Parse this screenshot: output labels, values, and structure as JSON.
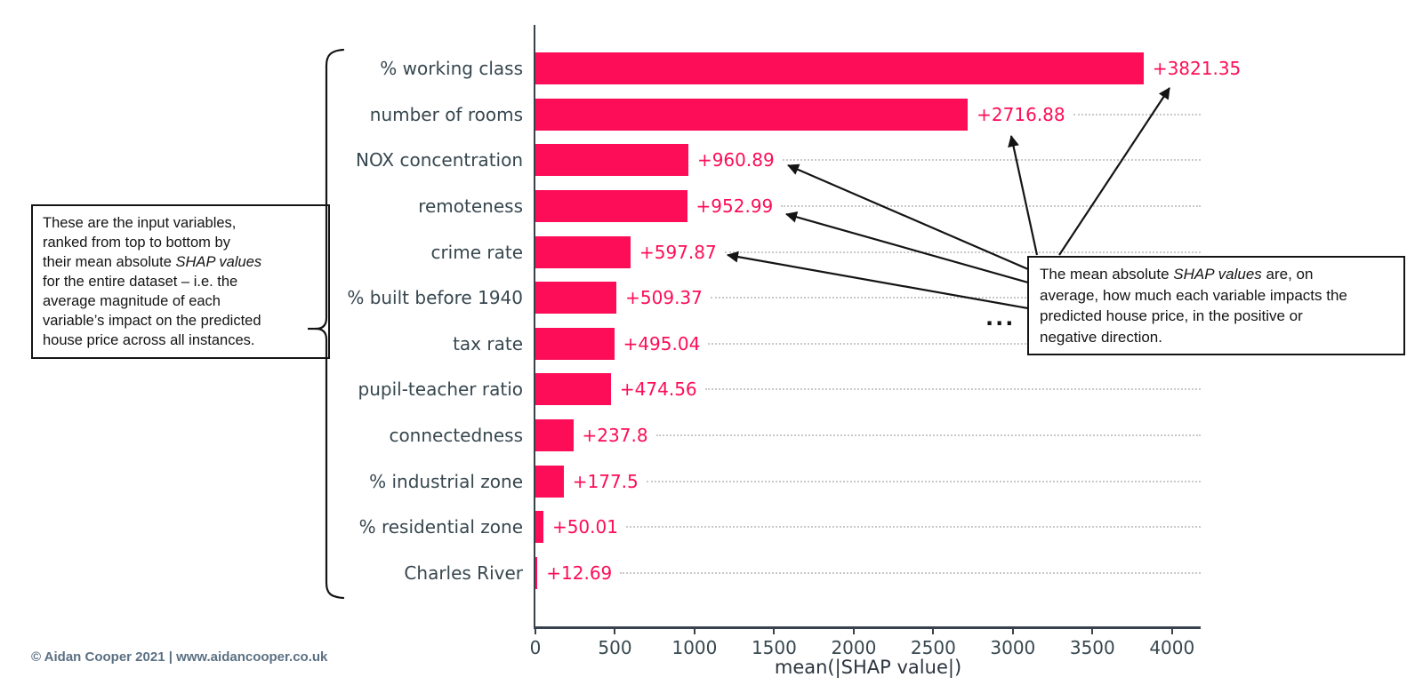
{
  "chart_data": {
    "type": "bar",
    "orientation": "horizontal",
    "title": "",
    "xlabel": "mean(|SHAP value|)",
    "ylabel": "",
    "categories": [
      "% working class",
      "number of rooms",
      "NOX concentration",
      "remoteness",
      "crime rate",
      "% built before 1940",
      "tax rate",
      "pupil-teacher ratio",
      "connectedness",
      "% industrial zone",
      "% residential zone",
      "Charles River"
    ],
    "values": [
      3821.35,
      2716.88,
      960.89,
      952.99,
      597.87,
      509.37,
      495.04,
      474.56,
      237.8,
      177.5,
      50.01,
      12.69
    ],
    "value_labels": [
      "+3821.35",
      "+2716.88",
      "+960.89",
      "+952.99",
      "+597.87",
      "+509.37",
      "+495.04",
      "+474.56",
      "+237.8",
      "+177.5",
      "+50.01",
      "+12.69"
    ],
    "xticks": [
      0,
      500,
      1000,
      1500,
      2000,
      2500,
      3000,
      3500,
      4000
    ],
    "xlim": [
      0,
      4180
    ],
    "grid": "horizontal-dotted",
    "legend_position": "none"
  },
  "annotations": {
    "left_note": {
      "lines": [
        [
          {
            "t": "These are the input variables,"
          }
        ],
        [
          {
            "t": "ranked from top to bottom by"
          }
        ],
        [
          {
            "t": "their mean absolute "
          },
          {
            "t": "SHAP values",
            "i": true
          }
        ],
        [
          {
            "t": "for the entire dataset – i.e. the"
          }
        ],
        [
          {
            "t": "average magnitude of each"
          }
        ],
        [
          {
            "t": "variable’s impact on the predicted"
          }
        ],
        [
          {
            "t": "house price across all instances."
          }
        ]
      ]
    },
    "right_note": {
      "lines": [
        [
          {
            "t": "The mean absolute "
          },
          {
            "t": "SHAP values",
            "i": true
          },
          {
            "t": " are, on"
          }
        ],
        [
          {
            "t": "average, how much each variable impacts the"
          }
        ],
        [
          {
            "t": "predicted house price, in the positive or"
          }
        ],
        [
          {
            "t": "negative direction."
          }
        ]
      ]
    },
    "ellipsis": "..."
  },
  "footer": {
    "credit": "© Aidan Cooper 2021 | www.aidancooper.co.uk"
  },
  "colors": {
    "bar": "#fd0d57",
    "axis_text": "#37474f",
    "axis_line": "#37424e",
    "grid": "#c9c9c9",
    "annotation": "#141414",
    "credit": "#5b7083"
  }
}
